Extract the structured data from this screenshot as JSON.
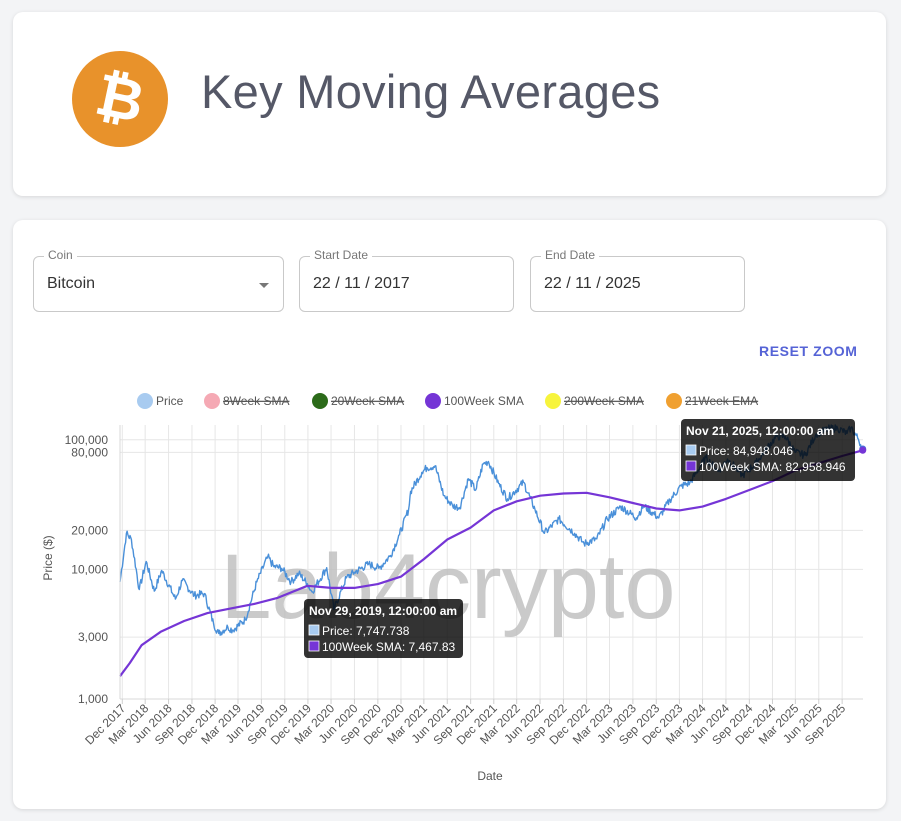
{
  "header": {
    "title": "Key Moving Averages",
    "logo_icon": "bitcoin-icon",
    "logo_glyph": "₿",
    "logo_color": "#e8922b"
  },
  "controls": {
    "coin": {
      "label": "Coin",
      "value": "Bitcoin"
    },
    "start_date": {
      "label": "Start Date",
      "value": "22 / 11 / 2017"
    },
    "end_date": {
      "label": "End Date",
      "value": "22 / 11 / 2025"
    },
    "reset_zoom": "RESET ZOOM"
  },
  "watermark": "Lab4crypto",
  "chart_data": {
    "type": "line",
    "title": "",
    "xlabel": "Date",
    "ylabel": "Price ($)",
    "y_scale": "log",
    "ylim": [
      1000,
      130000
    ],
    "y_ticks": [
      {
        "value": 1000,
        "label": "1,000"
      },
      {
        "value": 3000,
        "label": "3,000"
      },
      {
        "value": 10000,
        "label": "10,000"
      },
      {
        "value": 20000,
        "label": "20,000"
      },
      {
        "value": 80000,
        "label": "80,000"
      },
      {
        "value": 100000,
        "label": "100,000"
      }
    ],
    "x_range": [
      "2017-11-22",
      "2025-11-22"
    ],
    "x_ticks": [
      "Dec 2017",
      "Mar 2018",
      "Jun 2018",
      "Sep 2018",
      "Dec 2018",
      "Mar 2019",
      "Jun 2019",
      "Sep 2019",
      "Dec 2019",
      "Mar 2020",
      "Jun 2020",
      "Sep 2020",
      "Dec 2020",
      "Mar 2021",
      "Jun 2021",
      "Sep 2021",
      "Dec 2021",
      "Mar 2022",
      "Jun 2022",
      "Sep 2022",
      "Dec 2022",
      "Mar 2023",
      "Jun 2023",
      "Sep 2023",
      "Dec 2023",
      "Mar 2024",
      "Jun 2024",
      "Sep 2024",
      "Dec 2024",
      "Mar 2025",
      "Jun 2025",
      "Sep 2025"
    ],
    "legend": [
      {
        "name": "Price",
        "color": "#a8cbf0",
        "hidden": false
      },
      {
        "name": "8Week SMA",
        "color": "#f5a9b4",
        "hidden": true
      },
      {
        "name": "20Week SMA",
        "color": "#2c6b1a",
        "hidden": true
      },
      {
        "name": "100Week SMA",
        "color": "#7535d6",
        "hidden": false
      },
      {
        "name": "200Week SMA",
        "color": "#f7f43c",
        "hidden": true
      },
      {
        "name": "21Week EMA",
        "color": "#f0a030",
        "hidden": true
      }
    ],
    "series": [
      {
        "name": "Price",
        "color": "#4a90d9",
        "points": [
          [
            "2017-11-22",
            8000
          ],
          [
            "2017-12-17",
            19000
          ],
          [
            "2018-01-06",
            17000
          ],
          [
            "2018-02-06",
            7000
          ],
          [
            "2018-03-05",
            11500
          ],
          [
            "2018-04-06",
            6800
          ],
          [
            "2018-05-05",
            9800
          ],
          [
            "2018-06-28",
            5900
          ],
          [
            "2018-07-25",
            8200
          ],
          [
            "2018-09-10",
            6300
          ],
          [
            "2018-10-20",
            6500
          ],
          [
            "2018-11-25",
            3800
          ],
          [
            "2018-12-15",
            3200
          ],
          [
            "2019-01-20",
            3600
          ],
          [
            "2019-02-08",
            3400
          ],
          [
            "2019-03-30",
            4100
          ],
          [
            "2019-05-14",
            8000
          ],
          [
            "2019-06-26",
            12500
          ],
          [
            "2019-07-20",
            10500
          ],
          [
            "2019-08-20",
            10200
          ],
          [
            "2019-09-26",
            8000
          ],
          [
            "2019-10-26",
            9300
          ],
          [
            "2019-11-29",
            7747.738
          ],
          [
            "2019-12-17",
            6700
          ],
          [
            "2020-02-13",
            10300
          ],
          [
            "2020-03-12",
            4900
          ],
          [
            "2020-04-30",
            8600
          ],
          [
            "2020-06-01",
            9500
          ],
          [
            "2020-07-27",
            11000
          ],
          [
            "2020-09-05",
            10200
          ],
          [
            "2020-10-21",
            12800
          ],
          [
            "2020-11-25",
            18500
          ],
          [
            "2020-12-31",
            29000
          ],
          [
            "2021-01-08",
            40000
          ],
          [
            "2021-02-21",
            56000
          ],
          [
            "2021-03-13",
            61000
          ],
          [
            "2021-04-14",
            63000
          ],
          [
            "2021-05-19",
            37000
          ],
          [
            "2021-06-22",
            31000
          ],
          [
            "2021-07-20",
            30000
          ],
          [
            "2021-08-23",
            50000
          ],
          [
            "2021-09-21",
            41000
          ],
          [
            "2021-10-20",
            65000
          ],
          [
            "2021-11-10",
            68000
          ],
          [
            "2021-12-20",
            46000
          ],
          [
            "2022-01-24",
            35000
          ],
          [
            "2022-03-28",
            47000
          ],
          [
            "2022-05-12",
            29000
          ],
          [
            "2022-06-18",
            19000
          ],
          [
            "2022-08-14",
            24500
          ],
          [
            "2022-10-15",
            19000
          ],
          [
            "2022-11-21",
            15800
          ],
          [
            "2023-01-10",
            17200
          ],
          [
            "2023-02-20",
            24500
          ],
          [
            "2023-04-14",
            30500
          ],
          [
            "2023-06-15",
            25000
          ],
          [
            "2023-07-13",
            31000
          ],
          [
            "2023-09-11",
            25000
          ],
          [
            "2023-10-25",
            34500
          ],
          [
            "2023-12-08",
            44000
          ],
          [
            "2024-01-11",
            46500
          ],
          [
            "2024-03-14",
            73000
          ],
          [
            "2024-05-01",
            57000
          ],
          [
            "2024-06-07",
            71000
          ],
          [
            "2024-08-05",
            53000
          ],
          [
            "2024-09-27",
            66000
          ],
          [
            "2024-11-12",
            88000
          ],
          [
            "2024-12-17",
            106000
          ],
          [
            "2025-01-21",
            106000
          ],
          [
            "2025-02-28",
            80000
          ],
          [
            "2025-04-08",
            76000
          ],
          [
            "2025-05-22",
            111000
          ],
          [
            "2025-07-14",
            122000
          ],
          [
            "2025-08-14",
            123000
          ],
          [
            "2025-09-20",
            112000
          ],
          [
            "2025-10-06",
            124000
          ],
          [
            "2025-11-04",
            101000
          ],
          [
            "2025-11-21",
            84948.046
          ]
        ]
      },
      {
        "name": "100Week SMA",
        "color": "#7535d6",
        "points": [
          [
            "2017-11-22",
            1500
          ],
          [
            "2017-12-31",
            1900
          ],
          [
            "2018-02-15",
            2600
          ],
          [
            "2018-05-01",
            3300
          ],
          [
            "2018-08-01",
            4000
          ],
          [
            "2018-11-01",
            4600
          ],
          [
            "2019-02-01",
            5000
          ],
          [
            "2019-05-01",
            5400
          ],
          [
            "2019-08-01",
            6000
          ],
          [
            "2019-11-29",
            7467.83
          ],
          [
            "2020-03-01",
            7200
          ],
          [
            "2020-06-01",
            7200
          ],
          [
            "2020-09-01",
            7700
          ],
          [
            "2020-12-01",
            8800
          ],
          [
            "2021-03-01",
            12000
          ],
          [
            "2021-06-01",
            17000
          ],
          [
            "2021-09-01",
            21000
          ],
          [
            "2021-12-01",
            28500
          ],
          [
            "2022-03-01",
            33500
          ],
          [
            "2022-06-01",
            37000
          ],
          [
            "2022-09-01",
            38500
          ],
          [
            "2022-12-01",
            39000
          ],
          [
            "2023-03-01",
            36000
          ],
          [
            "2023-06-01",
            32500
          ],
          [
            "2023-09-01",
            29500
          ],
          [
            "2023-12-01",
            28500
          ],
          [
            "2024-03-01",
            30500
          ],
          [
            "2024-06-01",
            35000
          ],
          [
            "2024-09-01",
            41000
          ],
          [
            "2024-12-01",
            48000
          ],
          [
            "2025-03-01",
            58000
          ],
          [
            "2025-06-01",
            66000
          ],
          [
            "2025-09-01",
            75000
          ],
          [
            "2025-11-21",
            82958.946
          ]
        ]
      }
    ],
    "tooltips": [
      {
        "title": "Nov 29, 2019, 12:00:00 am",
        "price": "Price: 7,747.738",
        "sma": "100Week SMA: 7,467.83"
      },
      {
        "title": "Nov 21, 2025, 12:00:00 am",
        "price": "Price: 84,948.046",
        "sma": "100Week SMA: 82,958.946"
      }
    ]
  }
}
